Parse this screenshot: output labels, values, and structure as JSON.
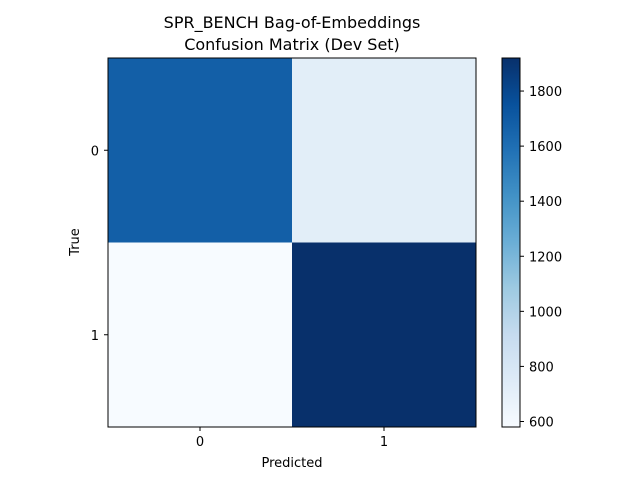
{
  "chart_data": {
    "type": "heatmap",
    "title": [
      "SPR_BENCH Bag-of-Embeddings",
      "Confusion Matrix (Dev Set)"
    ],
    "xlabel": "Predicted",
    "ylabel": "True",
    "x_categories": [
      "0",
      "1"
    ],
    "y_categories": [
      "0",
      "1"
    ],
    "matrix": [
      [
        1680,
        720
      ],
      [
        580,
        1920
      ]
    ],
    "colormap": "Blues",
    "colorbar": {
      "range": [
        580,
        1920
      ],
      "ticks": [
        600,
        800,
        1000,
        1200,
        1400,
        1600,
        1800
      ],
      "tick_labels": [
        "600",
        "800",
        "1000",
        "1200",
        "1400",
        "1600",
        "1800"
      ]
    }
  }
}
